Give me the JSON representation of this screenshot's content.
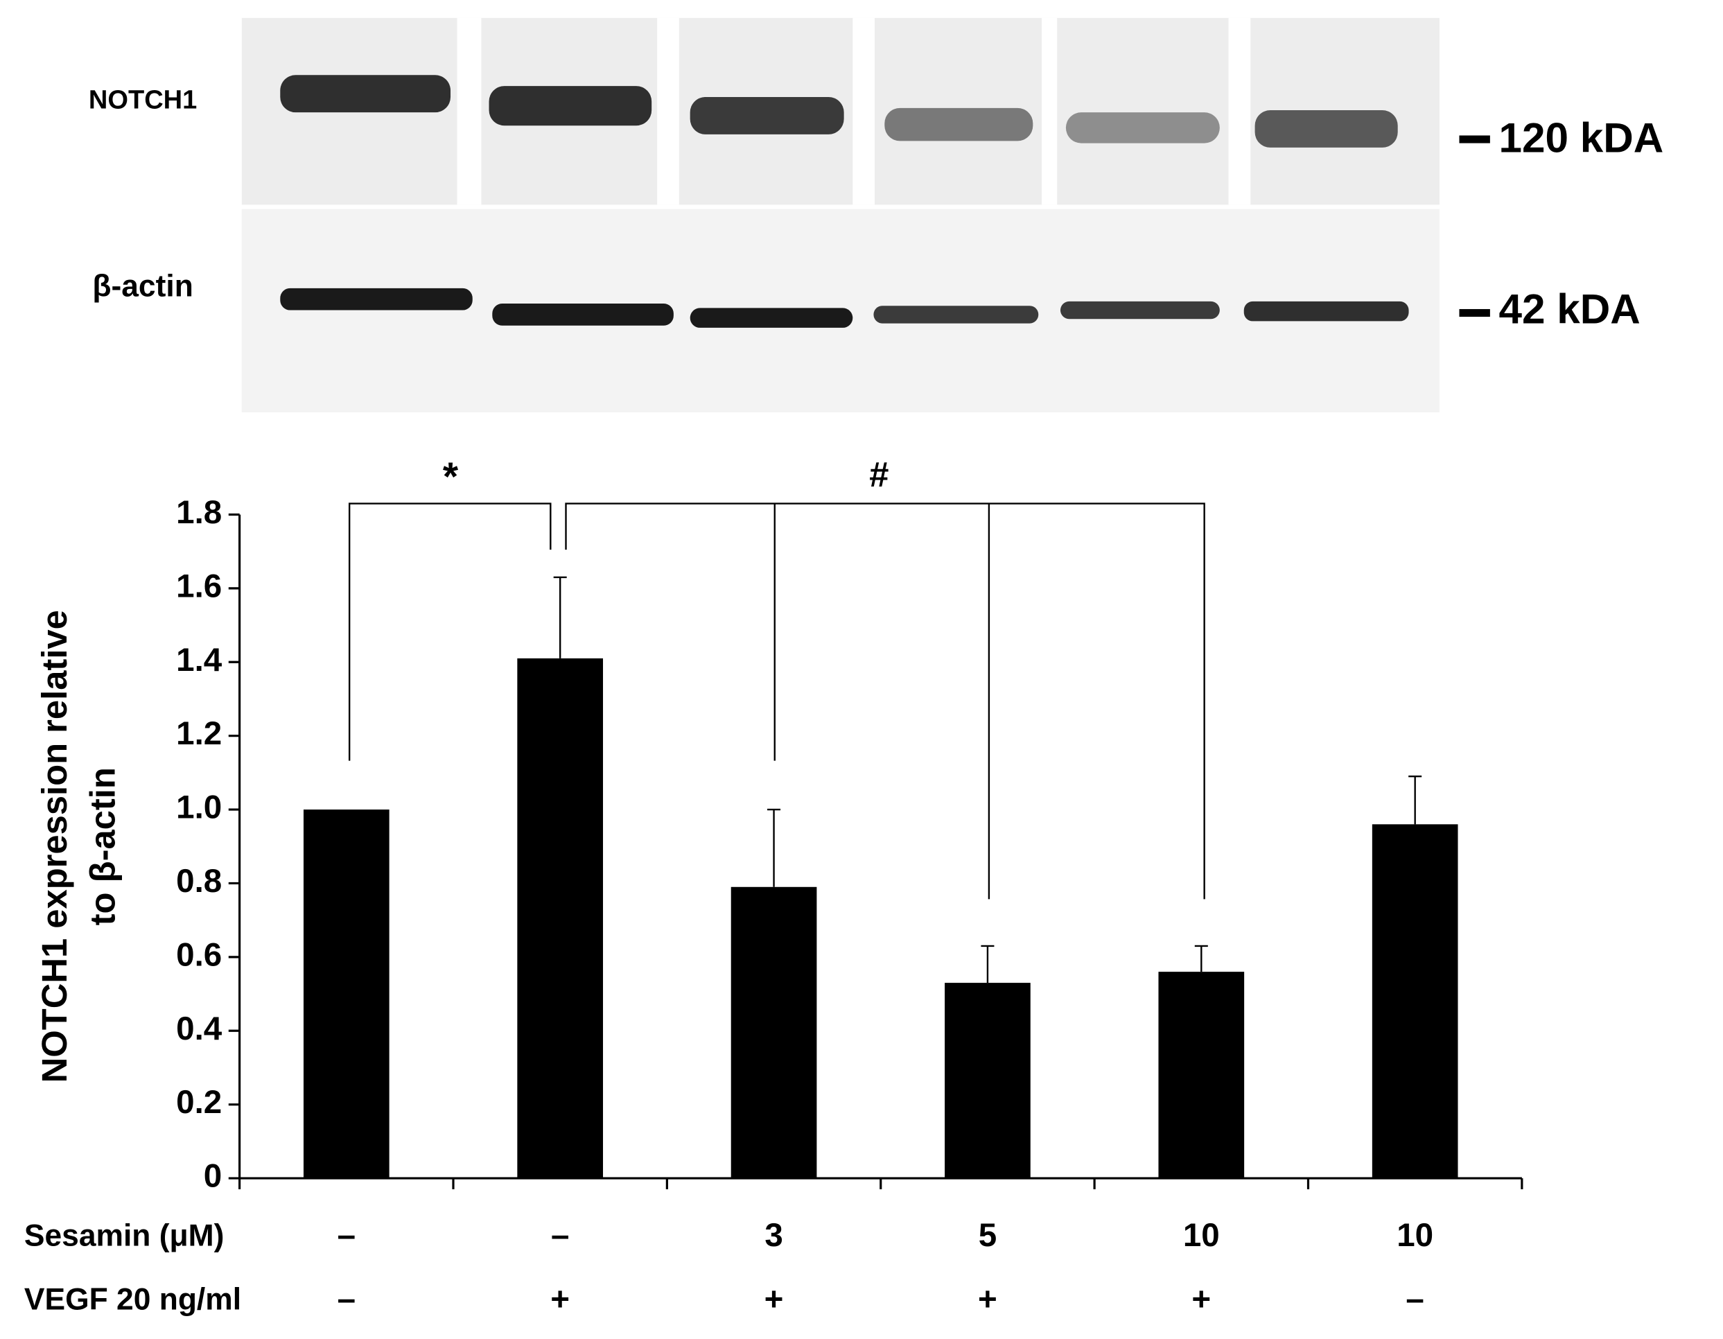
{
  "blot": {
    "rows": [
      {
        "label": "NOTCH1",
        "marker": "120 kDA"
      },
      {
        "label": "β-actin",
        "marker": "42 kDA"
      }
    ]
  },
  "chart_data": {
    "type": "bar",
    "ylabel": [
      "NOTCH1 expression relative",
      "to β-actin"
    ],
    "values": [
      1.0,
      1.41,
      0.79,
      0.53,
      0.56,
      0.96
    ],
    "errors": [
      null,
      0.22,
      0.21,
      0.1,
      0.07,
      0.13
    ],
    "color": "#000000",
    "ylim": [
      0,
      1.8
    ],
    "yticks": [
      0,
      0.2,
      0.4,
      0.6,
      0.8,
      {
        "value": 1,
        "label": "1.0"
      },
      1.2,
      1.4,
      1.6,
      1.8
    ],
    "conditions": [
      {
        "label": "Sesamin (μM)",
        "values": [
          "–",
          "–",
          "3",
          "5",
          "10",
          "10"
        ]
      },
      {
        "label": "VEGF 20 ng/ml",
        "values": [
          "–",
          "+",
          "+",
          "+",
          "+",
          "–"
        ]
      }
    ],
    "annotations": [
      "*",
      "#"
    ]
  }
}
